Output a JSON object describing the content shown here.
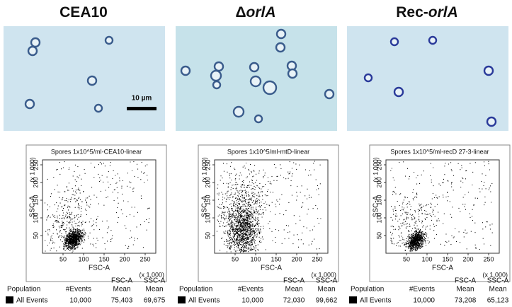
{
  "panels": [
    {
      "title": [
        "CEA10"
      ],
      "scale_bar": "10 µm",
      "plot": {
        "title": "Spores 1x10^5/ml-CEA10-linear",
        "x_label": "FSC-A",
        "y_label": "SSC-A",
        "x_unit": "(x 1,000)",
        "y_unit": "(x 1,000)",
        "xticks": [
          50,
          100,
          150,
          200,
          250
        ],
        "yticks": [
          50,
          100,
          150,
          200,
          250
        ]
      },
      "table": {
        "header": [
          [
            "Population"
          ],
          [
            "#Events"
          ],
          [
            "FSC-A",
            "Mean"
          ],
          [
            "SSC-A",
            "Mean"
          ]
        ],
        "rows": [
          [
            "All Events",
            "10,000",
            "75,403",
            "69,675"
          ]
        ]
      }
    },
    {
      "title": [
        "Δ",
        "orlA"
      ],
      "plot": {
        "title": "Spores 1x10^5/ml-mtD-linear",
        "x_label": "FSC-A",
        "y_label": "SSC-A",
        "x_unit": "(x 1,000)",
        "y_unit": "(x 1,000)",
        "xticks": [
          50,
          100,
          150,
          200,
          250
        ],
        "yticks": [
          50,
          100,
          150,
          200,
          250
        ]
      },
      "table": {
        "header": [
          [
            "Population"
          ],
          [
            "#Events"
          ],
          [
            "FSC-A",
            "Mean"
          ],
          [
            "SSC-A",
            "Mean"
          ]
        ],
        "rows": [
          [
            "All Events",
            "10,000",
            "72,030",
            "99,662"
          ]
        ]
      }
    },
    {
      "title": [
        "Rec-",
        "orlA"
      ],
      "plot": {
        "title": "Spores 1x10^5/ml-recD 27-3-linear",
        "x_label": "FSC-A",
        "y_label": "SSC-A",
        "x_unit": "(x 1,000)",
        "y_unit": "(x 1,000)",
        "xticks": [
          50,
          100,
          150,
          200,
          250
        ],
        "yticks": [
          50,
          100,
          150,
          200,
          250
        ]
      },
      "table": {
        "header": [
          [
            "Population"
          ],
          [
            "#Events"
          ],
          [
            "FSC-A",
            "Mean"
          ],
          [
            "SSC-A",
            "Mean"
          ]
        ],
        "rows": [
          [
            "All Events",
            "10,000",
            "73,208",
            "65,123"
          ]
        ]
      }
    }
  ]
}
